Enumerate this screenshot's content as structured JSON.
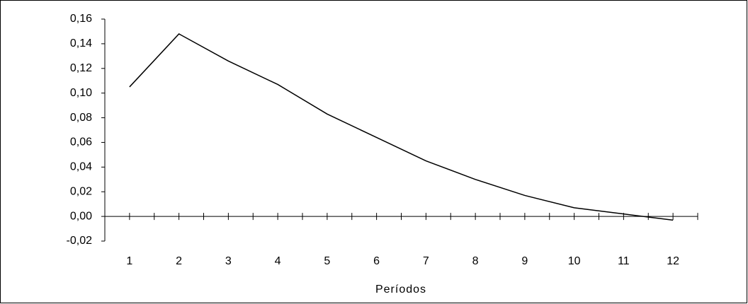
{
  "chart_data": {
    "type": "line",
    "x_label": "Períodos",
    "categories": [
      "1",
      "2",
      "3",
      "4",
      "5",
      "6",
      "7",
      "8",
      "9",
      "10",
      "11",
      "12"
    ],
    "values": [
      0.105,
      0.148,
      0.126,
      0.107,
      0.083,
      0.064,
      0.045,
      0.03,
      0.017,
      0.007,
      0.002,
      -0.003
    ],
    "color": "#000000",
    "ylim": [
      -0.02,
      0.16
    ],
    "yticks": [
      {
        "value": -0.02,
        "label": "-0,02"
      },
      {
        "value": 0,
        "label": "0,00"
      },
      {
        "value": 0.02,
        "label": "0,02"
      },
      {
        "value": 0.04,
        "label": "0,04"
      },
      {
        "value": 0.06,
        "label": "0,06"
      },
      {
        "value": 0.08,
        "label": "0,08"
      },
      {
        "value": 0.1,
        "label": "0,10"
      },
      {
        "value": 0.12,
        "label": "0,12"
      },
      {
        "value": 0.14,
        "label": "0,14"
      },
      {
        "value": 0.16,
        "label": "0,16"
      }
    ],
    "grid": false
  }
}
